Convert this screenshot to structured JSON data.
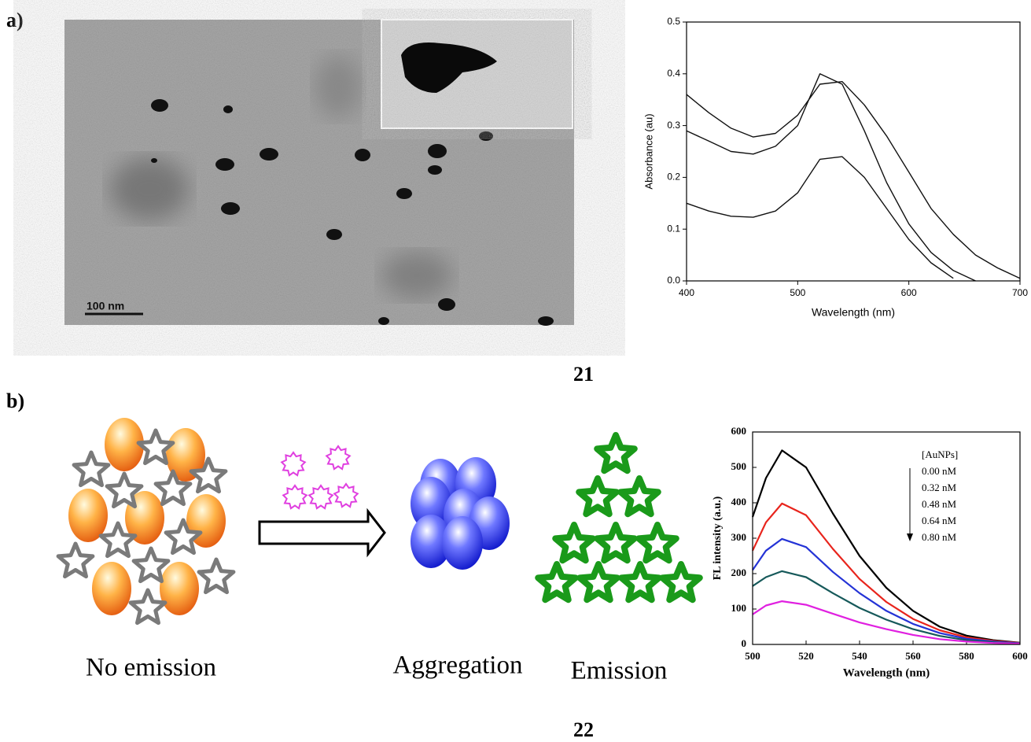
{
  "panel_labels": [
    "a)",
    "b)"
  ],
  "figure_numbers": [
    "21",
    "22"
  ],
  "scale_bar": "100 nm",
  "scheme_labels": [
    "No emission",
    "Aggregation",
    "Emission"
  ],
  "chart_data": [
    {
      "type": "line",
      "x_label": "Wavelength (nm)",
      "y_label": "Absorbance (au)",
      "x": [
        400,
        420,
        440,
        460,
        480,
        500,
        520,
        540,
        560,
        580,
        600,
        620,
        640,
        660,
        680,
        700
      ],
      "series": [
        {
          "color": "#111111",
          "values": [
            0.36,
            0.325,
            0.295,
            0.278,
            0.285,
            0.32,
            0.38,
            0.385,
            0.34,
            0.28,
            0.21,
            0.14,
            0.09,
            0.05,
            0.025,
            0.005
          ]
        },
        {
          "color": "#111111",
          "values": [
            0.29,
            0.27,
            0.25,
            0.245,
            0.26,
            0.3,
            0.4,
            0.38,
            0.29,
            0.19,
            0.11,
            0.055,
            0.02,
            0,
            null,
            null
          ]
        },
        {
          "color": "#111111",
          "values": [
            0.15,
            0.135,
            0.125,
            0.123,
            0.135,
            0.17,
            0.235,
            0.24,
            0.2,
            0.14,
            0.08,
            0.035,
            0.005,
            null,
            null,
            null
          ]
        }
      ],
      "xlim": [
        400,
        700
      ],
      "xticks": [
        400,
        500,
        600,
        700
      ],
      "ylim": [
        0,
        0.5
      ],
      "yticks": [
        {
          "value": 0,
          "label": "0.0"
        },
        0.1,
        0.2,
        0.3,
        0.4,
        0.5
      ]
    },
    {
      "type": "line",
      "x_label": "Wavelength (nm)",
      "y_label": "FL intensity (a.u.)",
      "legend_title": "[AuNPs]",
      "x": [
        500,
        505,
        511,
        520,
        530,
        540,
        550,
        560,
        570,
        580,
        590,
        600
      ],
      "series": [
        {
          "name": "0.00 nM",
          "color": "#000000",
          "values": [
            360,
            470,
            548,
            500,
            370,
            250,
            160,
            95,
            50,
            25,
            12,
            5
          ]
        },
        {
          "name": "0.32 nM",
          "color": "#e8241c",
          "values": [
            265,
            345,
            398,
            365,
            270,
            185,
            120,
            72,
            40,
            20,
            10,
            4
          ]
        },
        {
          "name": "0.48 nM",
          "color": "#2433d6",
          "values": [
            210,
            265,
            298,
            275,
            205,
            145,
            95,
            58,
            32,
            16,
            8,
            3
          ]
        },
        {
          "name": "0.64 nM",
          "color": "#16595a",
          "values": [
            165,
            190,
            207,
            190,
            145,
            103,
            70,
            43,
            24,
            12,
            6,
            2
          ]
        },
        {
          "name": "0.80 nM",
          "color": "#e020e0",
          "values": [
            85,
            110,
            122,
            112,
            87,
            62,
            43,
            27,
            15,
            8,
            4,
            2
          ]
        }
      ],
      "xlim": [
        500,
        600
      ],
      "xticks": [
        500,
        520,
        540,
        560,
        580,
        600
      ],
      "ylim": [
        0,
        600
      ],
      "yticks": [
        0,
        100,
        200,
        300,
        400,
        500,
        600
      ]
    }
  ]
}
